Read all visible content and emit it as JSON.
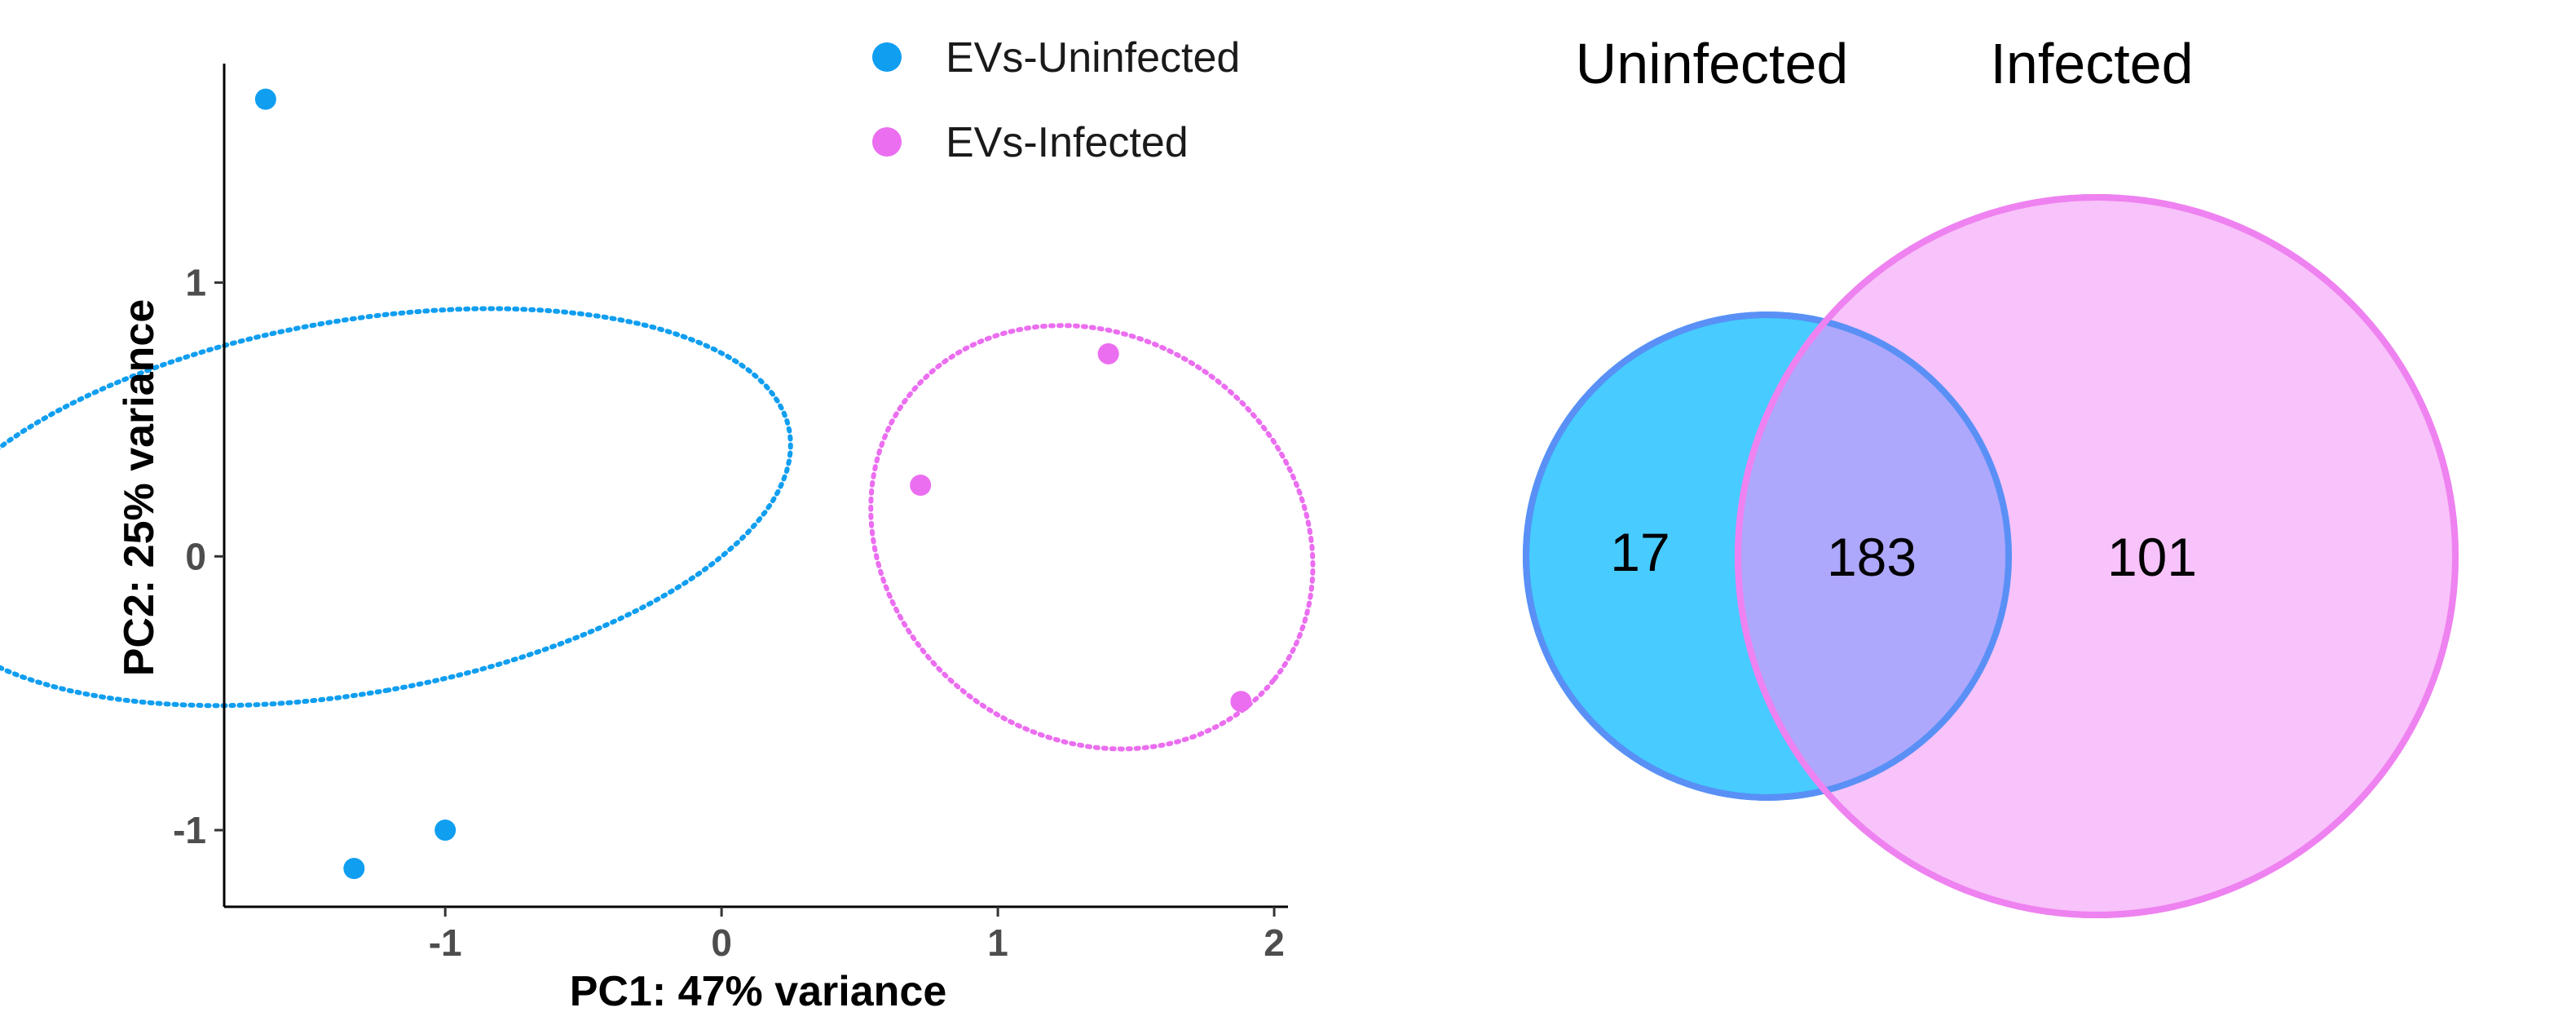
{
  "chart_data": [
    {
      "type": "scatter",
      "xlabel": "PC1: 47% variance",
      "ylabel": "PC2: 25% variance",
      "xlim": [
        -1.8,
        2.05
      ],
      "ylim": [
        -1.28,
        1.8
      ],
      "xticks": [
        -1,
        0,
        1,
        2
      ],
      "yticks": [
        -1,
        0,
        1
      ],
      "xtick_labels": [
        "-1",
        "0",
        "1",
        "2"
      ],
      "ytick_labels": [
        "-1",
        "0",
        "1"
      ],
      "grid": false,
      "legend_position": "top-center",
      "series": [
        {
          "name": "EVs-Uninfected",
          "color": "#0f9ef0",
          "points": [
            {
              "x": -1.65,
              "y": 1.67
            },
            {
              "x": -1.33,
              "y": -1.14
            },
            {
              "x": -1.0,
              "y": -1.0
            }
          ],
          "ellipse": {
            "cx": -1.33,
            "cy": 0.18,
            "rx": 0.68,
            "ry": 1.6,
            "angle_deg": -80
          }
        },
        {
          "name": "EVs-Infected",
          "color": "#eb6ef0",
          "points": [
            {
              "x": 0.72,
              "y": 0.26
            },
            {
              "x": 1.4,
              "y": 0.74
            },
            {
              "x": 1.88,
              "y": -0.53
            }
          ],
          "ellipse": {
            "cx": 1.34,
            "cy": 0.07,
            "rx": 0.84,
            "ry": 0.73,
            "angle_deg": -38
          }
        }
      ]
    },
    {
      "type": "venn",
      "sets": [
        {
          "name": "Uninfected",
          "size": 200,
          "color": "#48cbff",
          "stroke": "#0c9cee"
        },
        {
          "name": "Infected",
          "size": 284,
          "color": "#f8c2fa",
          "stroke": "#ee82f0"
        }
      ],
      "regions": {
        "uninfected_only": "17",
        "both": "183",
        "infected_only": "101"
      },
      "overlap_color": "#aea8fd"
    }
  ]
}
